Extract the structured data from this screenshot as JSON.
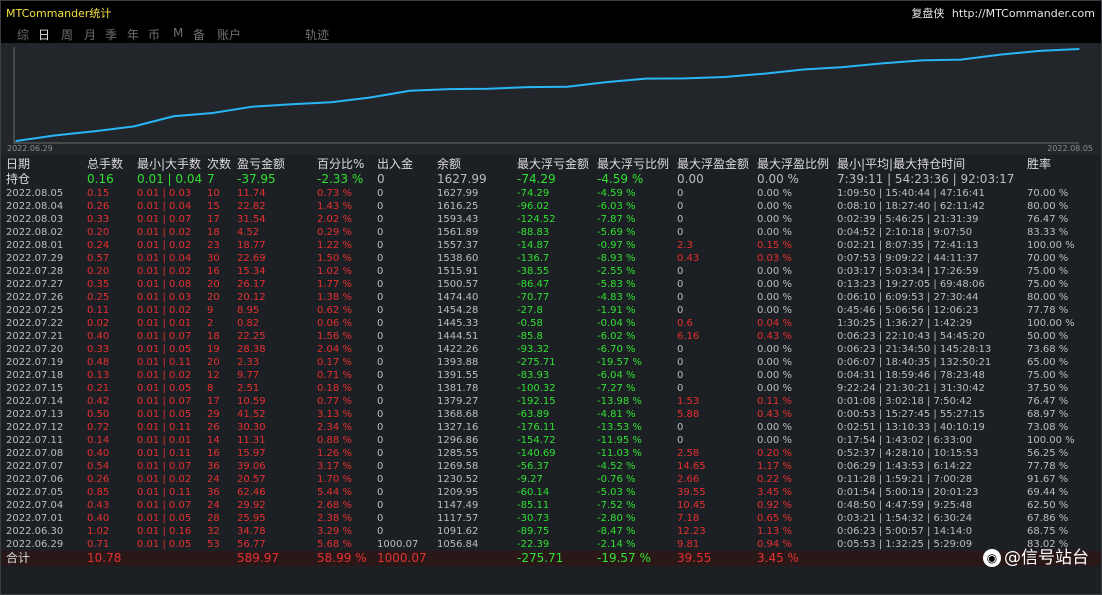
{
  "app": {
    "title": "MTCommander统计"
  },
  "brand": {
    "name": "复盘侠",
    "url": "http://MTCommander.com"
  },
  "tabs": [
    {
      "label": "综",
      "active": false
    },
    {
      "label": "日",
      "active": true
    },
    {
      "label": "周",
      "active": false
    },
    {
      "label": "月",
      "active": false
    },
    {
      "label": "季",
      "active": false
    },
    {
      "label": "年",
      "active": false
    },
    {
      "label": "币",
      "active": false
    },
    {
      "label": "M",
      "active": false
    },
    {
      "label": "备",
      "active": false
    },
    {
      "label": "账户",
      "active": false
    },
    {
      "label": "轨迹",
      "active": false
    }
  ],
  "chart_data": {
    "type": "line",
    "x_start_label": "2022.06.29",
    "x_end_label": "2022.08.05",
    "color": "#29b6f6",
    "x": [
      "2022.06.29",
      "2022.06.30",
      "2022.07.01",
      "2022.07.04",
      "2022.07.05",
      "2022.07.06",
      "2022.07.07",
      "2022.07.08",
      "2022.07.11",
      "2022.07.12",
      "2022.07.13",
      "2022.07.14",
      "2022.07.15",
      "2022.07.18",
      "2022.07.19",
      "2022.07.20",
      "2022.07.21",
      "2022.07.22",
      "2022.07.25",
      "2022.07.26",
      "2022.07.27",
      "2022.07.28",
      "2022.07.29",
      "2022.08.01",
      "2022.08.02",
      "2022.08.03",
      "2022.08.04",
      "2022.08.05"
    ],
    "values": [
      1056.84,
      1091.62,
      1117.57,
      1147.49,
      1209.95,
      1230.52,
      1269.58,
      1285.55,
      1296.86,
      1327.16,
      1368.68,
      1379.27,
      1381.78,
      1391.55,
      1393.88,
      1422.26,
      1444.51,
      1445.33,
      1454.28,
      1474.4,
      1500.57,
      1515.91,
      1538.6,
      1557.37,
      1561.89,
      1593.43,
      1616.25,
      1627.99
    ]
  },
  "table": {
    "headers": [
      "日期",
      "总手数",
      "最小|大手数",
      "次数",
      "盈亏金额",
      "百分比%",
      "出入金",
      "余额",
      "最大浮亏金额",
      "最大浮亏比例",
      "最大浮盈金额",
      "最大浮盈比例",
      "最小|平均|最大持仓时间",
      "胜率"
    ],
    "hold": {
      "label": "持仓",
      "lots": "0.16",
      "minmax": "0.01 | 0.04",
      "count": "7",
      "pnl": "-37.95",
      "pct": "-2.33 %",
      "io": "0",
      "balance": "1627.99",
      "float_loss": "-74.29",
      "float_loss_pct": "-4.59 %",
      "float_profit": "0.00",
      "float_profit_pct": "0.00 %",
      "hold_time": "7:39:11 | 54:23:36 | 92:03:17",
      "win": ""
    },
    "rows": [
      [
        "2022.08.05",
        "0.15",
        "0.01 | 0.03",
        "10",
        "11.74",
        "0.73 %",
        "0",
        "1627.99",
        "-74.29",
        "-4.59 %",
        "0",
        "0.00 %",
        "1:09:50 | 15:40:44 | 47:16:41",
        "70.00 %"
      ],
      [
        "2022.08.04",
        "0.26",
        "0.01 | 0.04",
        "15",
        "22.82",
        "1.43 %",
        "0",
        "1616.25",
        "-96.02",
        "-6.03 %",
        "0",
        "0.00 %",
        "0:08:10 | 18:27:40 | 62:11:42",
        "80.00 %"
      ],
      [
        "2022.08.03",
        "0.33",
        "0.01 | 0.07",
        "17",
        "31.54",
        "2.02 %",
        "0",
        "1593.43",
        "-124.52",
        "-7.87 %",
        "0",
        "0.00 %",
        "0:02:39 | 5:46:25 | 21:31:39",
        "76.47 %"
      ],
      [
        "2022.08.02",
        "0.20",
        "0.01 | 0.02",
        "18",
        "4.52",
        "0.29 %",
        "0",
        "1561.89",
        "-88.83",
        "-5.69 %",
        "0",
        "0.00 %",
        "0:04:52 | 2:10:18 | 9:07:50",
        "83.33 %"
      ],
      [
        "2022.08.01",
        "0.24",
        "0.01 | 0.02",
        "23",
        "18.77",
        "1.22 %",
        "0",
        "1557.37",
        "-14.87",
        "-0.97 %",
        "2.3",
        "0.15 %",
        "0:02:21 | 8:07:35 | 72:41:13",
        "100.00 %"
      ],
      [
        "2022.07.29",
        "0.57",
        "0.01 | 0.04",
        "30",
        "22.69",
        "1.50 %",
        "0",
        "1538.60",
        "-136.7",
        "-8.93 %",
        "0.43",
        "0.03 %",
        "0:07:53 | 9:09:22 | 44:11:37",
        "70.00 %"
      ],
      [
        "2022.07.28",
        "0.20",
        "0.01 | 0.02",
        "16",
        "15.34",
        "1.02 %",
        "0",
        "1515.91",
        "-38.55",
        "-2.55 %",
        "0",
        "0.00 %",
        "0:03:17 | 5:03:34 | 17:26:59",
        "75.00 %"
      ],
      [
        "2022.07.27",
        "0.35",
        "0.01 | 0.08",
        "20",
        "26.17",
        "1.77 %",
        "0",
        "1500.57",
        "-86.47",
        "-5.83 %",
        "0",
        "0.00 %",
        "0:13:23 | 19:27:05 | 69:48:06",
        "75.00 %"
      ],
      [
        "2022.07.26",
        "0.25",
        "0.01 | 0.03",
        "20",
        "20.12",
        "1.38 %",
        "0",
        "1474.40",
        "-70.77",
        "-4.83 %",
        "0",
        "0.00 %",
        "0:06:10 | 6:09:53 | 27:30:44",
        "80.00 %"
      ],
      [
        "2022.07.25",
        "0.11",
        "0.01 | 0.02",
        "9",
        "8.95",
        "0.62 %",
        "0",
        "1454.28",
        "-27.8",
        "-1.91 %",
        "0",
        "0.00 %",
        "0:45:46 | 5:06:56 | 12:06:23",
        "77.78 %"
      ],
      [
        "2022.07.22",
        "0.02",
        "0.01 | 0.01",
        "2",
        "0.82",
        "0.06 %",
        "0",
        "1445.33",
        "-0.58",
        "-0.04 %",
        "0.6",
        "0.04 %",
        "1:30:25 | 1:36:27 | 1:42:29",
        "100.00 %"
      ],
      [
        "2022.07.21",
        "0.40",
        "0.01 | 0.07",
        "18",
        "22.25",
        "1.56 %",
        "0",
        "1444.51",
        "-85.8",
        "-6.02 %",
        "6.16",
        "0.43 %",
        "0:06:23 | 22:10:43 | 54:45:20",
        "50.00 %"
      ],
      [
        "2022.07.20",
        "0.33",
        "0.01 | 0.05",
        "19",
        "28.38",
        "2.04 %",
        "0",
        "1422.26",
        "-93.32",
        "-6.70 %",
        "0",
        "0.00 %",
        "0:06:23 | 21:34:50 | 145:28:13",
        "73.68 %"
      ],
      [
        "2022.07.19",
        "0.48",
        "0.01 | 0.11",
        "20",
        "2.33",
        "0.17 %",
        "0",
        "1393.88",
        "-275.71",
        "-19.57 %",
        "0",
        "0.00 %",
        "0:06:07 | 18:40:35 | 132:50:21",
        "65.00 %"
      ],
      [
        "2022.07.18",
        "0.13",
        "0.01 | 0.02",
        "12",
        "9.77",
        "0.71 %",
        "0",
        "1391.55",
        "-83.93",
        "-6.04 %",
        "0",
        "0.00 %",
        "0:04:31 | 18:59:46 | 78:23:48",
        "75.00 %"
      ],
      [
        "2022.07.15",
        "0.21",
        "0.01 | 0.05",
        "8",
        "2.51",
        "0.18 %",
        "0",
        "1381.78",
        "-100.32",
        "-7.27 %",
        "0",
        "0.00 %",
        "9:22:24 | 21:30:21 | 31:30:42",
        "37.50 %"
      ],
      [
        "2022.07.14",
        "0.42",
        "0.01 | 0.07",
        "17",
        "10.59",
        "0.77 %",
        "0",
        "1379.27",
        "-192.15",
        "-13.98 %",
        "1.53",
        "0.11 %",
        "0:01:08 | 3:02:18 | 7:50:42",
        "76.47 %"
      ],
      [
        "2022.07.13",
        "0.50",
        "0.01 | 0.05",
        "29",
        "41.52",
        "3.13 %",
        "0",
        "1368.68",
        "-63.89",
        "-4.81 %",
        "5.88",
        "0.43 %",
        "0:00:53 | 15:27:45 | 55:27:15",
        "68.97 %"
      ],
      [
        "2022.07.12",
        "0.72",
        "0.01 | 0.11",
        "26",
        "30.30",
        "2.34 %",
        "0",
        "1327.16",
        "-176.11",
        "-13.53 %",
        "0",
        "0.00 %",
        "0:02:51 | 13:10:33 | 40:10:19",
        "73.08 %"
      ],
      [
        "2022.07.11",
        "0.14",
        "0.01 | 0.01",
        "14",
        "11.31",
        "0.88 %",
        "0",
        "1296.86",
        "-154.72",
        "-11.95 %",
        "0",
        "0.00 %",
        "0:17:54 | 1:43:02 | 6:33:00",
        "100.00 %"
      ],
      [
        "2022.07.08",
        "0.40",
        "0.01 | 0.11",
        "16",
        "15.97",
        "1.26 %",
        "0",
        "1285.55",
        "-140.69",
        "-11.03 %",
        "2.58",
        "0.20 %",
        "0:52:37 | 4:28:10 | 10:15:53",
        "56.25 %"
      ],
      [
        "2022.07.07",
        "0.54",
        "0.01 | 0.07",
        "36",
        "39.06",
        "3.17 %",
        "0",
        "1269.58",
        "-56.37",
        "-4.52 %",
        "14.65",
        "1.17 %",
        "0:06:29 | 1:43:53 | 6:14:22",
        "77.78 %"
      ],
      [
        "2022.07.06",
        "0.26",
        "0.01 | 0.02",
        "24",
        "20.57",
        "1.70 %",
        "0",
        "1230.52",
        "-9.27",
        "-0.76 %",
        "2.66",
        "0.22 %",
        "0:11:28 | 1:59:21 | 7:00:28",
        "91.67 %"
      ],
      [
        "2022.07.05",
        "0.85",
        "0.01 | 0.11",
        "36",
        "62.46",
        "5.44 %",
        "0",
        "1209.95",
        "-60.14",
        "-5.03 %",
        "39.55",
        "3.45 %",
        "0:01:54 | 5:00:19 | 20:01:23",
        "69.44 %"
      ],
      [
        "2022.07.04",
        "0.43",
        "0.01 | 0.07",
        "24",
        "29.92",
        "2.68 %",
        "0",
        "1147.49",
        "-85.11",
        "-7.52 %",
        "10.45",
        "0.92 %",
        "0:48:50 | 4:47:59 | 9:25:48",
        "62.50 %"
      ],
      [
        "2022.07.01",
        "0.40",
        "0.01 | 0.05",
        "28",
        "25.95",
        "2.38 %",
        "0",
        "1117.57",
        "-30.73",
        "-2.80 %",
        "7.18",
        "0.65 %",
        "0:03:21 | 1:54:32 | 6:30:24",
        "67.86 %"
      ],
      [
        "2022.06.30",
        "1.02",
        "0.01 | 0.16",
        "32",
        "34.78",
        "3.29 %",
        "0",
        "1091.62",
        "-89.75",
        "-8.47 %",
        "12.23",
        "1.13 %",
        "0:06:23 | 5:00:57 | 14:14:0",
        "68.75 %"
      ],
      [
        "2022.06.29",
        "0.71",
        "0.01 | 0.05",
        "53",
        "56.77",
        "5.68 %",
        "1000.07",
        "1056.84",
        "-22.39",
        "-2.14 %",
        "9.81",
        "0.94 %",
        "0:05:53 | 1:32:25 | 5:29:09",
        "83.02 %"
      ]
    ],
    "total": {
      "label": "合计",
      "lots": "10.78",
      "pnl": "589.97",
      "pct": "58.99 %",
      "io": "1000.07",
      "float_loss": "-275.71",
      "float_loss_pct": "-19.57 %",
      "float_profit": "39.55",
      "float_profit_pct": "3.45 %"
    }
  },
  "watermark": {
    "icon": "weibo-icon",
    "text": "@信号站台"
  }
}
